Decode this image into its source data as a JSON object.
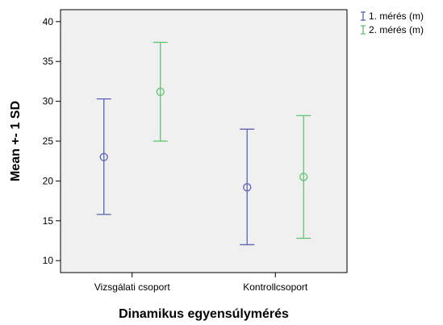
{
  "chart_data": {
    "type": "errorbar",
    "xlabel": "Dinamikus egyensúlymérés",
    "ylabel": "Mean +- 1 SD",
    "ylim": [
      8.5,
      41.5
    ],
    "yticks": [
      10,
      15,
      20,
      25,
      30,
      35,
      40
    ],
    "categories": [
      "Vizsgálati csoport",
      "Kontrollcsoport"
    ],
    "series": [
      {
        "name": "1. mérés (m)",
        "color": "#5a64b8",
        "mean": [
          23.0,
          19.2
        ],
        "lower": [
          15.8,
          12.0
        ],
        "upper": [
          30.3,
          26.5
        ]
      },
      {
        "name": "2. mérés (m)",
        "color": "#5ec36e",
        "mean": [
          31.2,
          20.5
        ],
        "lower": [
          25.0,
          12.8
        ],
        "upper": [
          37.4,
          28.2
        ]
      }
    ],
    "grid": false,
    "legend_position": "top-right",
    "plot_background": "#f0f0f0"
  }
}
